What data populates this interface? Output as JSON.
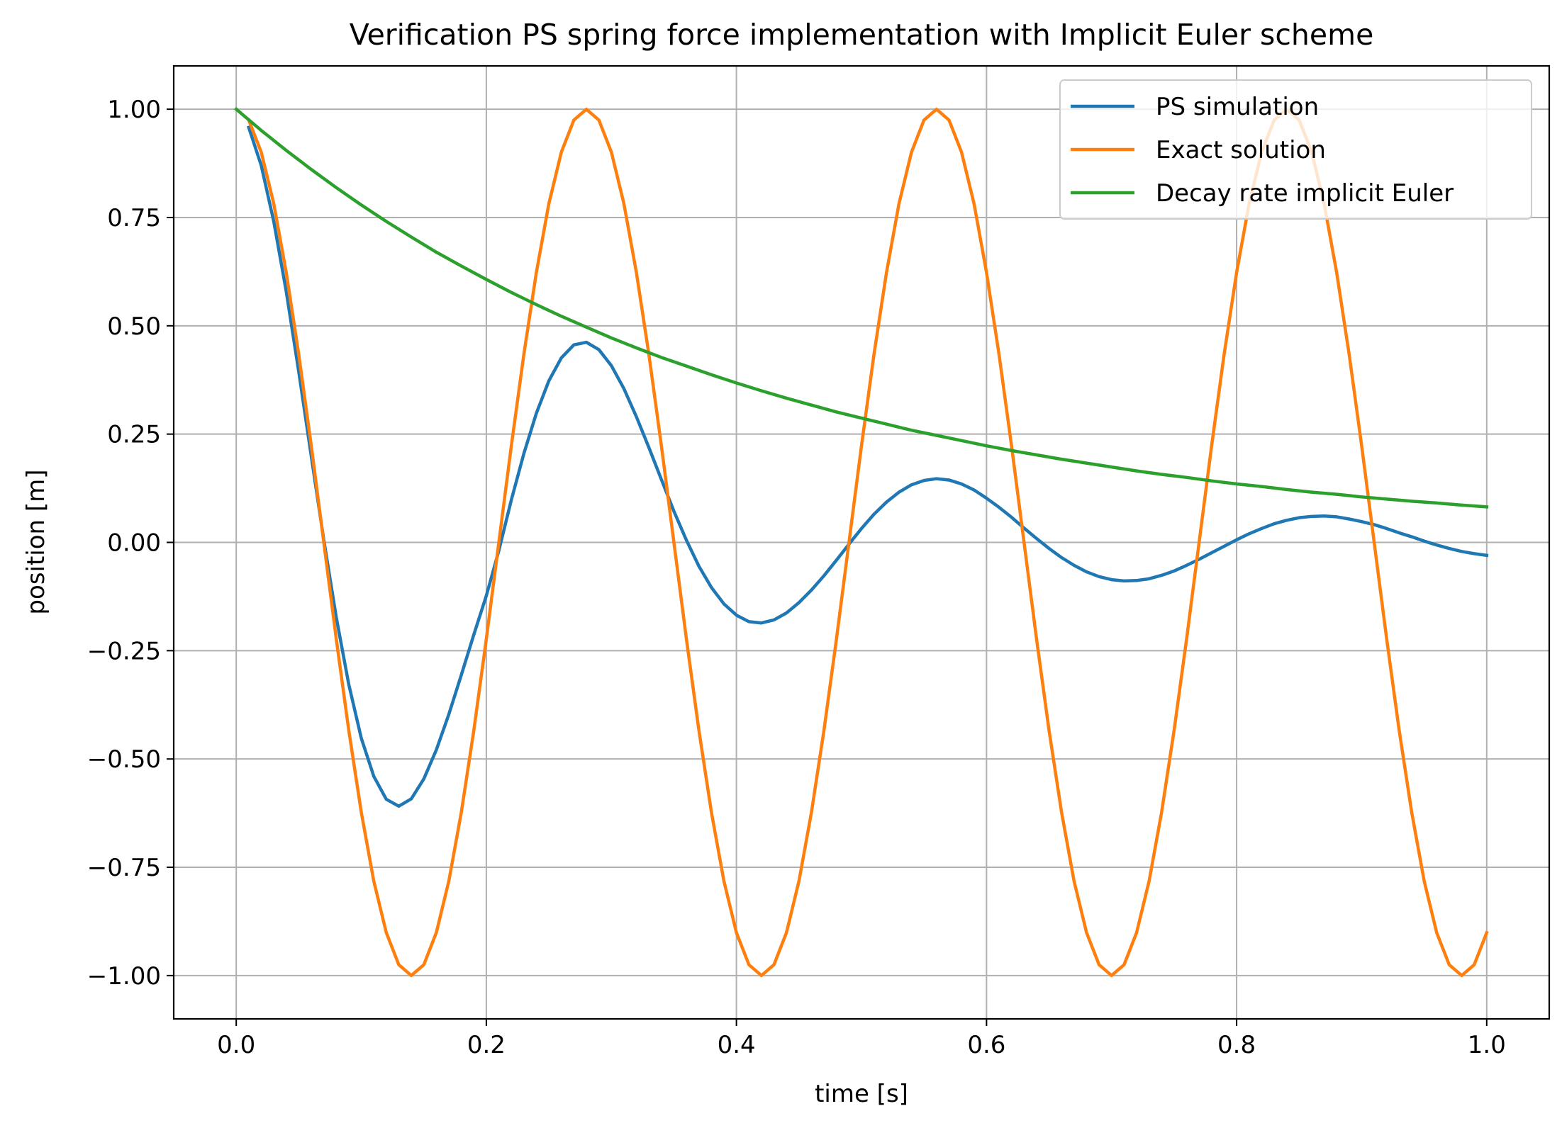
{
  "chart_data": {
    "type": "line",
    "title": "Verification PS spring force implementation with Implicit Euler scheme",
    "xlabel": "time [s]",
    "ylabel": "position [m]",
    "xlim": [
      -0.05,
      1.05
    ],
    "ylim": [
      -1.1,
      1.1
    ],
    "xticks": [
      0.0,
      0.2,
      0.4,
      0.6,
      0.8,
      1.0
    ],
    "xtick_labels": [
      "0.0",
      "0.2",
      "0.4",
      "0.6",
      "0.8",
      "1.0"
    ],
    "yticks": [
      -1.0,
      -0.75,
      -0.5,
      -0.25,
      0.0,
      0.25,
      0.5,
      0.75,
      1.0
    ],
    "ytick_labels": [
      "−1.00",
      "−0.75",
      "−0.50",
      "−0.25",
      "0.00",
      "0.25",
      "0.50",
      "0.75",
      "1.00"
    ],
    "grid": true,
    "legend_position": "upper right",
    "series": [
      {
        "name": "PS simulation",
        "color": "#1f77b4",
        "x": [
          0.01,
          0.02,
          0.03,
          0.04,
          0.05,
          0.06,
          0.07,
          0.08,
          0.09,
          0.1,
          0.11,
          0.12,
          0.13,
          0.14,
          0.15,
          0.16,
          0.17,
          0.18,
          0.19,
          0.2,
          0.21,
          0.22,
          0.23,
          0.24,
          0.25,
          0.26,
          0.27,
          0.28,
          0.29,
          0.3,
          0.31,
          0.32,
          0.33,
          0.34,
          0.35,
          0.36,
          0.37,
          0.38,
          0.39,
          0.4,
          0.41,
          0.42,
          0.43,
          0.44,
          0.45,
          0.46,
          0.47,
          0.48,
          0.49,
          0.5,
          0.51,
          0.52,
          0.53,
          0.54,
          0.55,
          0.56,
          0.57,
          0.58,
          0.59,
          0.6,
          0.61,
          0.62,
          0.63,
          0.64,
          0.65,
          0.66,
          0.67,
          0.68,
          0.69,
          0.7,
          0.71,
          0.72,
          0.73,
          0.74,
          0.75,
          0.76,
          0.77,
          0.78,
          0.79,
          0.8,
          0.81,
          0.82,
          0.83,
          0.84,
          0.85,
          0.86,
          0.87,
          0.88,
          0.89,
          0.9,
          0.91,
          0.92,
          0.93,
          0.94,
          0.95,
          0.96,
          0.97,
          0.98,
          0.99,
          1.0
        ],
        "y": [
          0.958,
          0.87,
          0.741,
          0.579,
          0.394,
          0.199,
          0.006,
          -0.173,
          -0.328,
          -0.452,
          -0.54,
          -0.593,
          -0.609,
          -0.592,
          -0.546,
          -0.479,
          -0.397,
          -0.306,
          -0.213,
          -0.123,
          -0.019,
          0.098,
          0.205,
          0.298,
          0.373,
          0.426,
          0.456,
          0.462,
          0.445,
          0.408,
          0.355,
          0.29,
          0.219,
          0.145,
          0.072,
          0.005,
          -0.055,
          -0.104,
          -0.142,
          -0.168,
          -0.183,
          -0.186,
          -0.179,
          -0.163,
          -0.139,
          -0.11,
          -0.077,
          -0.041,
          -0.004,
          0.032,
          0.065,
          0.093,
          0.116,
          0.133,
          0.143,
          0.147,
          0.144,
          0.135,
          0.121,
          0.102,
          0.081,
          0.058,
          0.033,
          0.009,
          -0.014,
          -0.035,
          -0.053,
          -0.068,
          -0.079,
          -0.086,
          -0.089,
          -0.088,
          -0.084,
          -0.076,
          -0.066,
          -0.053,
          -0.039,
          -0.024,
          -0.009,
          0.006,
          0.02,
          0.032,
          0.043,
          0.051,
          0.057,
          0.06,
          0.061,
          0.059,
          0.054,
          0.048,
          0.041,
          0.032,
          0.022,
          0.013,
          0.003,
          -0.006,
          -0.014,
          -0.021,
          -0.026,
          -0.03
        ]
      },
      {
        "name": "Exact solution",
        "color": "#ff7f0e",
        "x": [
          0.01,
          0.02,
          0.03,
          0.04,
          0.05,
          0.06,
          0.07,
          0.08,
          0.09,
          0.1,
          0.11,
          0.12,
          0.13,
          0.14,
          0.15,
          0.16,
          0.17,
          0.18,
          0.19,
          0.2,
          0.21,
          0.22,
          0.23,
          0.24,
          0.25,
          0.26,
          0.27,
          0.28,
          0.29,
          0.3,
          0.31,
          0.32,
          0.33,
          0.34,
          0.35,
          0.36,
          0.37,
          0.38,
          0.39,
          0.4,
          0.41,
          0.42,
          0.43,
          0.44,
          0.45,
          0.46,
          0.47,
          0.48,
          0.49,
          0.5,
          0.51,
          0.52,
          0.53,
          0.54,
          0.55,
          0.56,
          0.57,
          0.58,
          0.59,
          0.6,
          0.61,
          0.62,
          0.63,
          0.64,
          0.65,
          0.66,
          0.67,
          0.68,
          0.69,
          0.7,
          0.71,
          0.72,
          0.73,
          0.74,
          0.75,
          0.76,
          0.77,
          0.78,
          0.79,
          0.8,
          0.81,
          0.82,
          0.83,
          0.84,
          0.85,
          0.86,
          0.87,
          0.88,
          0.89,
          0.9,
          0.91,
          0.92,
          0.93,
          0.94,
          0.95,
          0.96,
          0.97,
          0.98,
          0.99,
          1.0
        ],
        "y": [
          0.975,
          0.901,
          0.782,
          0.623,
          0.434,
          0.223,
          0.0,
          -0.223,
          -0.434,
          -0.623,
          -0.782,
          -0.901,
          -0.975,
          -1.0,
          -0.975,
          -0.901,
          -0.782,
          -0.623,
          -0.434,
          -0.223,
          0.0,
          0.223,
          0.434,
          0.623,
          0.782,
          0.901,
          0.975,
          1.0,
          0.975,
          0.901,
          0.782,
          0.623,
          0.434,
          0.223,
          0.0,
          -0.223,
          -0.434,
          -0.623,
          -0.782,
          -0.901,
          -0.975,
          -1.0,
          -0.975,
          -0.901,
          -0.782,
          -0.623,
          -0.434,
          -0.223,
          0.0,
          0.223,
          0.434,
          0.623,
          0.782,
          0.901,
          0.975,
          1.0,
          0.975,
          0.901,
          0.782,
          0.623,
          0.434,
          0.223,
          0.0,
          -0.223,
          -0.434,
          -0.623,
          -0.782,
          -0.901,
          -0.975,
          -1.0,
          -0.975,
          -0.901,
          -0.782,
          -0.623,
          -0.434,
          -0.223,
          0.0,
          0.223,
          0.434,
          0.623,
          0.782,
          0.901,
          0.975,
          1.0,
          0.975,
          0.901,
          0.782,
          0.623,
          0.434,
          0.223,
          0.0,
          -0.223,
          -0.434,
          -0.623,
          -0.782,
          -0.901,
          -0.975,
          -1.0,
          -0.975,
          -0.901
        ]
      },
      {
        "name": "Decay rate implicit Euler",
        "color": "#2ca02c",
        "x": [
          0.0,
          0.02,
          0.04,
          0.06,
          0.08,
          0.1,
          0.12,
          0.14,
          0.16,
          0.18,
          0.2,
          0.22,
          0.24,
          0.26,
          0.28,
          0.3,
          0.32,
          0.34,
          0.36,
          0.38,
          0.4,
          0.42,
          0.44,
          0.46,
          0.48,
          0.5,
          0.52,
          0.54,
          0.56,
          0.58,
          0.6,
          0.62,
          0.64,
          0.66,
          0.68,
          0.7,
          0.72,
          0.74,
          0.76,
          0.78,
          0.8,
          0.82,
          0.84,
          0.86,
          0.88,
          0.9,
          0.92,
          0.94,
          0.96,
          0.98,
          1.0
        ],
        "y": [
          1.0,
          0.951,
          0.905,
          0.861,
          0.819,
          0.779,
          0.741,
          0.705,
          0.67,
          0.638,
          0.607,
          0.577,
          0.549,
          0.522,
          0.497,
          0.472,
          0.449,
          0.427,
          0.407,
          0.387,
          0.368,
          0.35,
          0.333,
          0.317,
          0.301,
          0.287,
          0.273,
          0.259,
          0.247,
          0.235,
          0.223,
          0.212,
          0.202,
          0.192,
          0.183,
          0.174,
          0.165,
          0.157,
          0.15,
          0.142,
          0.135,
          0.129,
          0.122,
          0.116,
          0.111,
          0.105,
          0.1,
          0.095,
          0.091,
          0.086,
          0.082
        ]
      }
    ]
  }
}
